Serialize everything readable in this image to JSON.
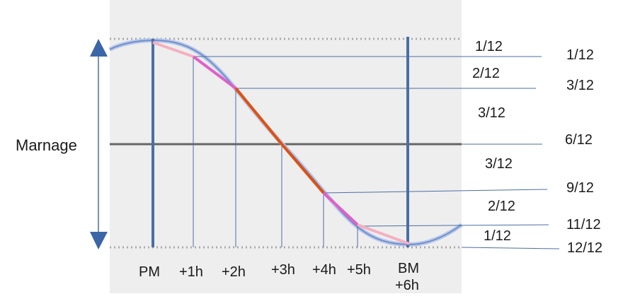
{
  "labels": {
    "amplitude": "Marnage",
    "times": [
      "PM",
      "+1h",
      "+2h",
      "+3h",
      "+4h",
      "+5h",
      "BM",
      "+6h"
    ],
    "hourly_fractions": [
      "1/12",
      "2/12",
      "3/12",
      "3/12",
      "2/12",
      "1/12"
    ],
    "cumulative_fractions": [
      "1/12",
      "3/12",
      "6/12",
      "9/12",
      "11/12",
      "12/12"
    ]
  },
  "colors": {
    "panel_bg": "#eeeeee",
    "wave": "#6f8fcf",
    "axis_lines": "#4a6fa5",
    "mid_line": "#666666",
    "segment_outer": "#f4b0c0",
    "segment_mid": "#e060c8",
    "segment_center": "#e0500f"
  }
}
